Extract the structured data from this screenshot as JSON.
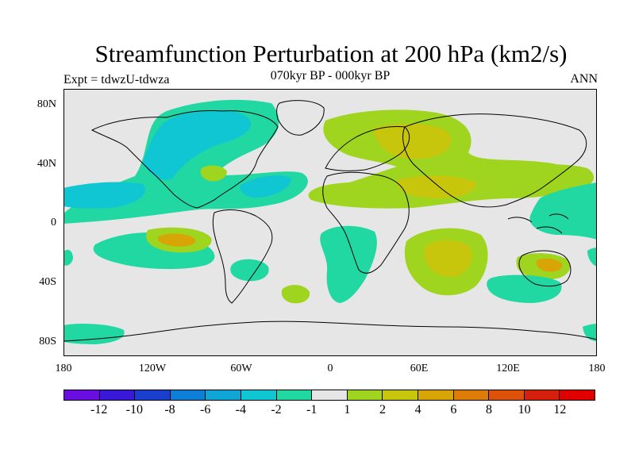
{
  "title": "Streamfunction Perturbation at 200 hPa (km2/s)",
  "experiment_label": "Expt = tdwzU-tdwza",
  "subtitle": "070kyr BP - 000kyr BP",
  "season": "ANN",
  "map": {
    "projection": "cylindrical equidistant",
    "background_color": "#e6e6e6",
    "coastline_color": "#000000",
    "lat_labels": [
      "80N",
      "40N",
      "0",
      "40S",
      "80S"
    ],
    "lon_labels": [
      "180",
      "120W",
      "60W",
      "0",
      "60E",
      "120E",
      "180"
    ]
  },
  "colorbar": {
    "colors": [
      "#6a0de0",
      "#3a18d8",
      "#1a3fcf",
      "#0d7fd8",
      "#0fa5d6",
      "#10c6d2",
      "#22d8a2",
      "#e6e6e6",
      "#9fd41f",
      "#c8c60c",
      "#d8a506",
      "#de7c08",
      "#dd520a",
      "#d6200e",
      "#e10000"
    ],
    "labels": [
      "-12",
      "-10",
      "-8",
      "-6",
      "-4",
      "-2",
      "-1",
      "1",
      "2",
      "4",
      "6",
      "8",
      "10",
      "12"
    ]
  }
}
